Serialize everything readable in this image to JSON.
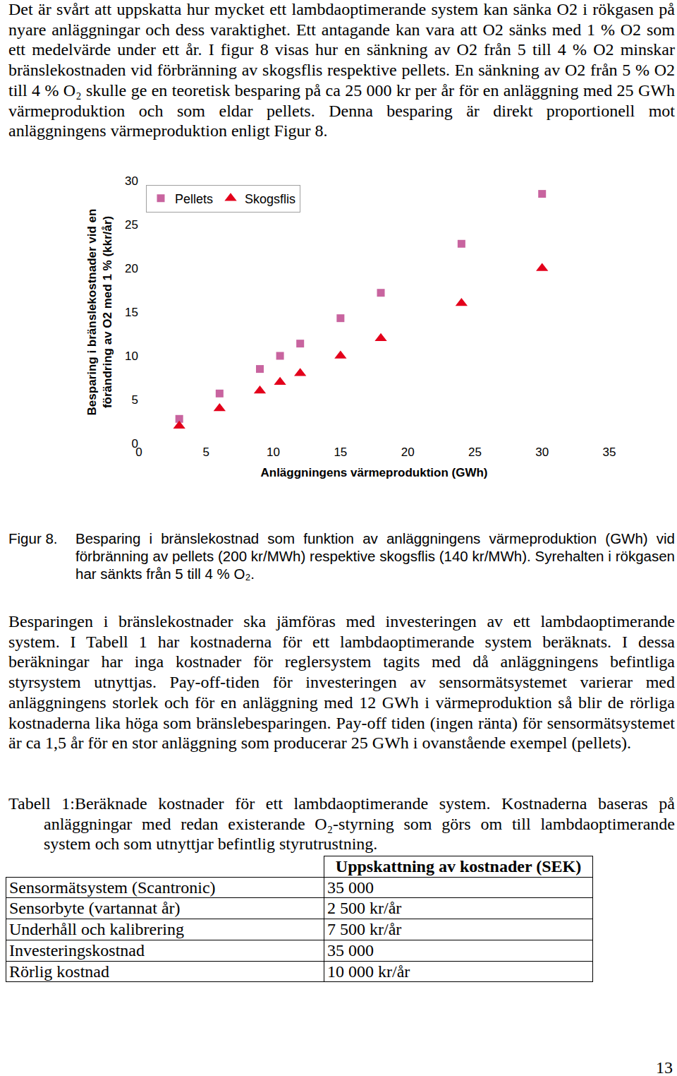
{
  "paragraphs": [
    "Det är svårt att uppskatta hur mycket ett lambdaoptimerande system kan sänka O2 i rökgasen på nyare anläggningar och dess varaktighet. Ett antagande kan vara att O2 sänks med 1 % O2 som ett medelvärde under ett år. I figur 8 visas hur en sänkning av O2 från 5 till 4 % O2 minskar bränslekostnaden vid förbränning av skogsflis respektive pellets. En sänkning av O2 från 5 % O2 till 4 % O₂ skulle ge en teoretisk besparing på ca 25 000 kr per år för en anläggning med 25 GWh värmeproduktion och som eldar pellets. Denna besparing är direkt proportionell mot anläggningens värmeproduktion enligt Figur 8.",
    "Besparingen i bränslekostnader ska jämföras med investeringen av ett lambdaoptimerande system. I Tabell 1 har kostnaderna för ett lambdaoptimerande system beräknats. I dessa beräkningar har inga kostnader för reglersystem tagits med då anläggningens befintliga styrsystem utnyttjas. Pay-off-tiden för investeringen av sensormätsystemet varierar med anläggningens storlek och för en anläggning med 12 GWh i värmeproduktion så blir de rörliga kostnaderna lika höga som bränslebesparingen. Pay-off tiden (ingen ränta) för sensormätsystemet är ca 1,5 år för en stor anläggning som producerar 25 GWh i ovanstående exempel (pellets)."
  ],
  "chart_data": {
    "type": "scatter",
    "x_label": "Anläggningens värmeproduktion (GWh)",
    "y_label": [
      "Besparing i bränslekostnader vid en",
      "förändring av O2 med 1 % (kkr/år)"
    ],
    "x": [
      3,
      6,
      9,
      10.5,
      12,
      15,
      18,
      24,
      30
    ],
    "series": [
      {
        "name": "Pellets",
        "color": "#c8649f",
        "marker": "square",
        "values": [
          2.8,
          5.7,
          8.5,
          10.0,
          11.4,
          14.3,
          17.2,
          22.8,
          28.5
        ]
      },
      {
        "name": "Skogsflis",
        "color": "#e3001b",
        "marker": "triangle-up",
        "values": [
          2.0,
          4.0,
          6.0,
          7.0,
          8.0,
          10.0,
          12.0,
          16.0,
          20.0
        ]
      }
    ],
    "xlim": [
      0,
      35
    ],
    "xticks": [
      0,
      5,
      10,
      15,
      20,
      25,
      30,
      35
    ],
    "ylim": [
      0,
      30
    ],
    "yticks": [
      0,
      5,
      10,
      15,
      20,
      25,
      30
    ],
    "grid": false,
    "legend": "top left"
  },
  "figure_caption": {
    "label": "Figur 8.",
    "text": "Besparing i bränslekostnad som funktion av anläggningens värmeproduktion (GWh) vid förbränning av pellets (200  kr/MWh) respektive skogsflis (140 kr/MWh). Syrehalten i rökgasen har sänkts från 5 till 4 % O₂."
  },
  "table": {
    "caption": "Tabell 1:Beräknade kostnader för ett lambdaoptimerande system. Kostnaderna baseras på anläggningar med redan existerande O₂-styrning som görs om till lambdaoptimerande system och som utnyttjar befintlig styrutrustning.",
    "header": "Uppskattning av kostnader (SEK)",
    "rows": [
      [
        "Sensormätsystem (Scantronic)",
        "35 000"
      ],
      [
        "Sensorbyte (vartannat år)",
        "2 500 kr/år"
      ],
      [
        "Underhåll och kalibrering",
        "7 500 kr/år"
      ],
      [
        "Investeringskostnad",
        "35 000"
      ],
      [
        "Rörlig kostnad",
        "10 000 kr/år"
      ]
    ]
  },
  "page_number": "13"
}
